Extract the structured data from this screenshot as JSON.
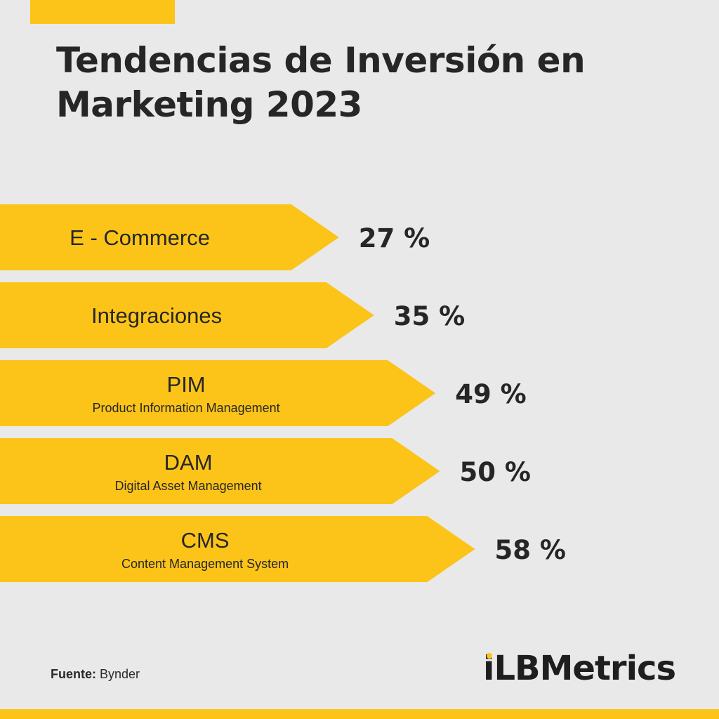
{
  "title_line1": "Tendencias de Inversión en",
  "title_line2": "Marketing 2023",
  "source_label": "Fuente:",
  "source_value": "Bynder",
  "brand": "iLBMetrics",
  "colors": {
    "accent": "#fcc419",
    "text": "#262626",
    "background": "#e9e9e9"
  },
  "chart_data": {
    "type": "bar",
    "orientation": "horizontal",
    "categories": [
      "E - Commerce",
      "Integraciones",
      "PIM",
      "DAM",
      "CMS"
    ],
    "subtitles": [
      "",
      "",
      "Product Information Management",
      "Digital Asset Management",
      "Content Management System"
    ],
    "values": [
      27,
      35,
      49,
      50,
      58
    ],
    "value_labels": [
      "27 %",
      "35 %",
      "49 %",
      "50 %",
      "58 %"
    ],
    "unit": "%"
  }
}
